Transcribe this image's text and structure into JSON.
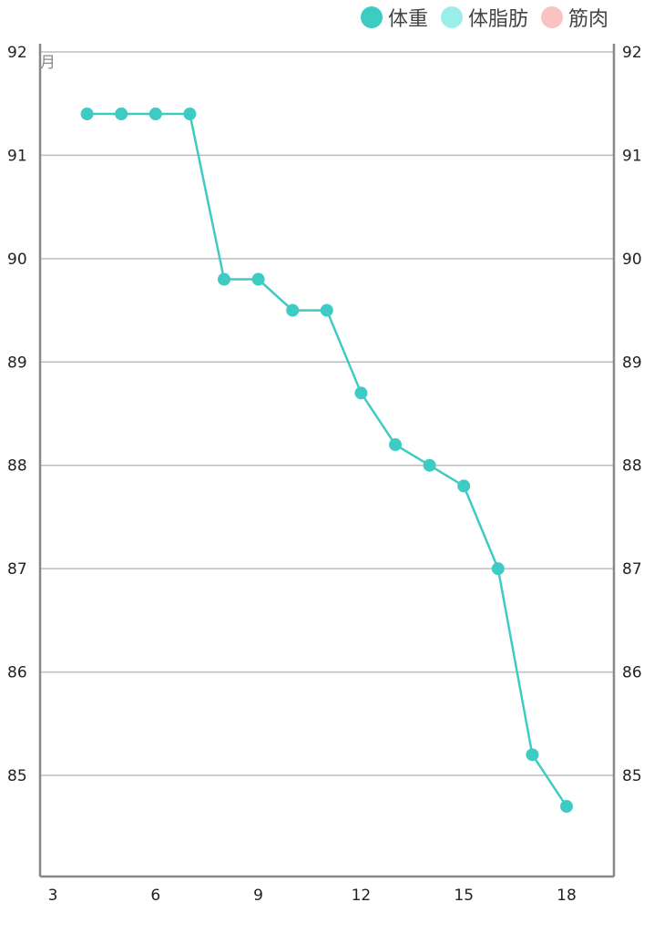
{
  "legend": [
    {
      "label": "体重",
      "color": "#3ecbc4"
    },
    {
      "label": "体脂肪",
      "color": "#9beeea"
    },
    {
      "label": "筋肉",
      "color": "#f9c3c3"
    }
  ],
  "axis_unit_label": "月",
  "chart_data": {
    "type": "line",
    "series": [
      {
        "name": "体重",
        "color": "#3ecbc4",
        "x": [
          4,
          5,
          6,
          7,
          8,
          9,
          10,
          11,
          12,
          13,
          14,
          15,
          16,
          17,
          18
        ],
        "values": [
          91.4,
          91.4,
          91.4,
          91.4,
          89.8,
          89.8,
          89.5,
          89.5,
          88.7,
          88.2,
          88.0,
          87.8,
          87.0,
          85.2,
          84.7
        ]
      }
    ],
    "xlim": [
      2.6,
      19.4
    ],
    "ylim": [
      84.0,
      92.0
    ],
    "x_ticks": [
      3,
      6,
      9,
      12,
      15,
      18
    ],
    "y_ticks": [
      85,
      86,
      87,
      88,
      89,
      90,
      91,
      92
    ],
    "grid": true,
    "legend_position": "top-right"
  }
}
